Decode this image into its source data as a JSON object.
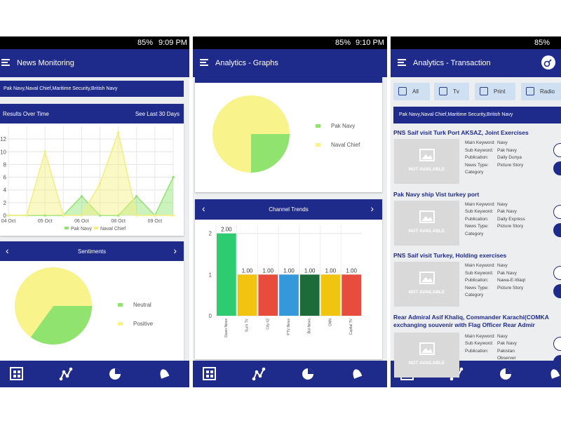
{
  "screens": [
    {
      "status": {
        "battery": "85%",
        "time": "9:09 PM"
      },
      "title": "News Monitoring",
      "keywords": "Pak Navy,Naval Chief,Maritime Security,British Navy",
      "results_card": {
        "title": "Results Over Time",
        "link": "See Last 30 Days",
        "chart": {
          "type": "line",
          "categories": [
            "04 Oct",
            null,
            "05 Oct",
            null,
            "06 Oct",
            null,
            "08 Oct",
            null,
            "09 Oct",
            null
          ],
          "series": [
            {
              "name": "Pak Navy",
              "color": "#8fe36e",
              "values": [
                0,
                0,
                0,
                0,
                3,
                0,
                0,
                3,
                0,
                6
              ]
            },
            {
              "name": "Naval Chief",
              "color": "#f3ef7e",
              "values": [
                0,
                0,
                10,
                0,
                0,
                5,
                13,
                0,
                0,
                0
              ]
            }
          ],
          "ylim": [
            0,
            14
          ],
          "yticks": [
            0,
            2,
            4,
            6,
            8,
            10,
            12
          ],
          "grid": true
        }
      },
      "sentiments_card": {
        "title": "Sentiments",
        "chart": {
          "type": "pie",
          "categories": [
            "Neutral",
            "Positive"
          ],
          "values": [
            35,
            65
          ],
          "colors": [
            "#8fe36e",
            "#f8f38a"
          ]
        }
      }
    },
    {
      "status": {
        "battery": "85%",
        "time": "9:10 PM"
      },
      "title": "Analytics - Graphs",
      "pie_card": {
        "chart": {
          "type": "pie",
          "categories": [
            "Pak Navy",
            "Naval Chief"
          ],
          "values": [
            25,
            75
          ],
          "colors": [
            "#8fe36e",
            "#f8f38a"
          ]
        }
      },
      "channel_card": {
        "title": "Channel Trends",
        "chart": {
          "type": "bar",
          "categories": [
            "Dawn News",
            "Such TV",
            "City 42",
            "PTV News",
            "Bol News",
            "GNN",
            "Capital TV"
          ],
          "values": [
            2,
            1,
            1,
            1,
            1,
            1,
            1
          ],
          "value_labels": [
            "2.00",
            "1.00",
            "1.00",
            "1.00",
            "1.00",
            "1.00",
            "1.00"
          ],
          "colors": [
            "#2ecc71",
            "#f1c40f",
            "#e74c3c",
            "#3498db",
            "#1e6b3a",
            "#f1c40f",
            "#e74c3c"
          ],
          "ylim": [
            0,
            2.2
          ],
          "yticks": [
            0,
            1,
            2
          ],
          "grid": true
        }
      }
    },
    {
      "status": {
        "battery": "85%"
      },
      "title": "Analytics - Transaction",
      "filters": [
        "All",
        "Tv",
        "Print",
        "Radio"
      ],
      "keywords": "Pak Navy,Naval Chief,Maritime Security,British Navy",
      "news": [
        {
          "title": [
            "PNS Saif visit Turk Port AKSAZ, Joint Exercises"
          ],
          "image_text": "NOT AVAILABLE",
          "fields": [
            {
              "label": "Main Keyword:",
              "value": "Navy"
            },
            {
              "label": "Sub Keyword:",
              "value": "Pak Navy"
            },
            {
              "label": "Publication:",
              "value": "Daily Dunya"
            },
            {
              "label": "News Type:",
              "value": "Picture Story"
            },
            {
              "label": "Category"
            }
          ]
        },
        {
          "title": [
            "Pak Navy ship Vist turkey port"
          ],
          "image_text": "NOT AVAILABLE",
          "fields": [
            {
              "label": "Main Keyword:",
              "value": "Navy"
            },
            {
              "label": "Sub Keyword:",
              "value": "Pak Navy"
            },
            {
              "label": "Publication:",
              "value": "Daily Express"
            },
            {
              "label": "News Type:",
              "value": "Picture Story"
            },
            {
              "label": "Category"
            }
          ]
        },
        {
          "title": [
            "PNS Saif visit Turkey, Holding exercises"
          ],
          "image_text": "NOT AVAILABLE",
          "fields": [
            {
              "label": "Main Keyword:",
              "value": "Navy"
            },
            {
              "label": "Sub Keyword:",
              "value": "Pak Navy"
            },
            {
              "label": "Publication:",
              "value": "Nawa-E-Waqt"
            },
            {
              "label": "News Type:",
              "value": "Picture Story"
            },
            {
              "label": "Category"
            }
          ]
        },
        {
          "title": [
            "Rear Admiral Asif Khaliq, Commander Karachi(COMKA",
            "exchanging souvenir with Flag Officer Rear Admir"
          ],
          "image_text": "NOT AVAILABLE",
          "fields": [
            {
              "label": "Main Keyword:",
              "value": "Navy"
            },
            {
              "label": "Sub Keyword:",
              "value": "Pak Navy"
            },
            {
              "label": "Publication:",
              "value": "Pakistan"
            },
            {
              "label": "",
              "value": "Observer"
            }
          ]
        }
      ]
    }
  ]
}
